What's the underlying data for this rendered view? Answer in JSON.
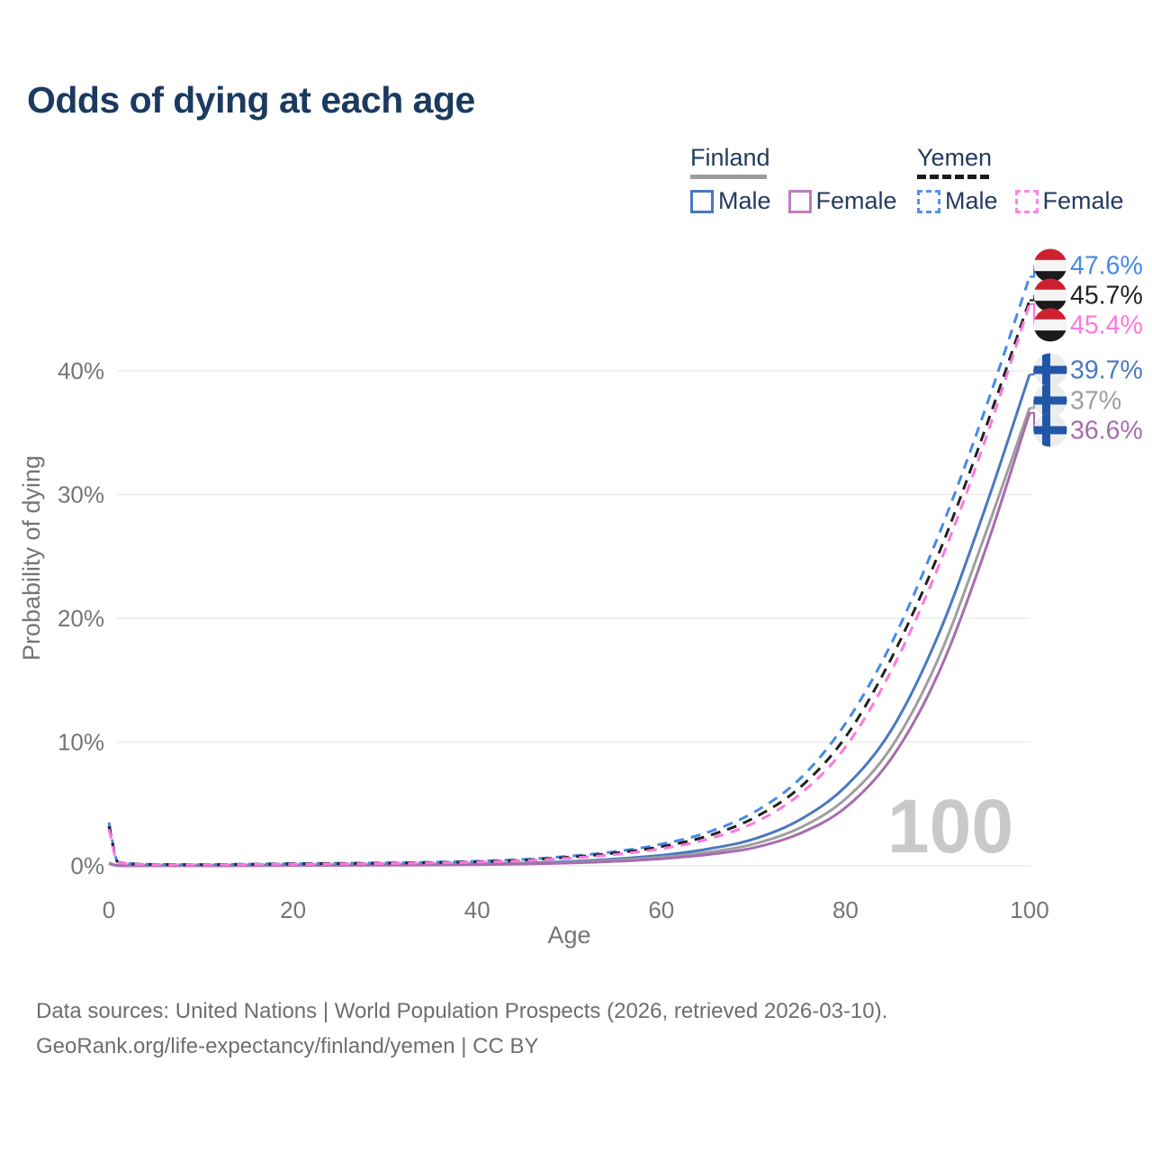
{
  "title": "Odds of dying at each age",
  "legend": {
    "groups": [
      {
        "title": "Finland",
        "line_style": "solid",
        "line_color": "#9c9c9c",
        "items": [
          {
            "label": "Male",
            "color": "#4a78c0"
          },
          {
            "label": "Female",
            "color": "#bd7ec0"
          }
        ]
      },
      {
        "title": "Yemen",
        "line_style": "dashed",
        "line_color": "#1a1a1a",
        "items": [
          {
            "label": "Male",
            "color": "#5591e8"
          },
          {
            "label": "Female",
            "color": "#ff85e3"
          }
        ]
      }
    ]
  },
  "watermark": "100",
  "chart_data": {
    "type": "line",
    "title": "Odds of dying at each age",
    "xlabel": "Age",
    "ylabel": "Probability of dying",
    "x_ticks": [
      0,
      20,
      40,
      60,
      80,
      100
    ],
    "y_ticks": [
      0,
      10,
      20,
      30,
      40
    ],
    "y_tick_suffix": "%",
    "xlim": [
      0,
      100
    ],
    "ylim": [
      0,
      48
    ],
    "grid": true,
    "legend_position": "top-right",
    "hovered_age": "100",
    "x": [
      0,
      1,
      5,
      10,
      15,
      20,
      25,
      30,
      35,
      40,
      45,
      50,
      55,
      60,
      65,
      70,
      75,
      80,
      85,
      90,
      95,
      100
    ],
    "series": [
      {
        "name": "Finland Male",
        "country": "Finland",
        "sex": "Male",
        "color": "#4a78c0",
        "dashed": false,
        "end_label": "39.7%",
        "end_value": 39.7,
        "values": [
          0.22,
          0.02,
          0.01,
          0.01,
          0.03,
          0.06,
          0.07,
          0.09,
          0.11,
          0.15,
          0.22,
          0.35,
          0.55,
          0.85,
          1.35,
          2.15,
          3.7,
          6.4,
          11.0,
          18.5,
          28.5,
          39.7
        ]
      },
      {
        "name": "Finland Both sexes",
        "country": "Finland",
        "sex": "Both",
        "color": "#9e9e9e",
        "dashed": false,
        "end_label": "37%",
        "end_value": 37,
        "values": [
          0.2,
          0.017,
          0.009,
          0.009,
          0.022,
          0.043,
          0.052,
          0.068,
          0.086,
          0.12,
          0.18,
          0.28,
          0.45,
          0.7,
          1.08,
          1.75,
          3.05,
          5.4,
          9.6,
          16.6,
          26.4,
          37.0
        ]
      },
      {
        "name": "Finland Female",
        "country": "Finland",
        "sex": "Female",
        "color": "#a76cb0",
        "dashed": false,
        "end_label": "36.6%",
        "end_value": 36.6,
        "values": [
          0.17,
          0.015,
          0.008,
          0.008,
          0.016,
          0.026,
          0.036,
          0.05,
          0.068,
          0.095,
          0.145,
          0.225,
          0.36,
          0.57,
          0.9,
          1.45,
          2.6,
          4.7,
          8.7,
          15.4,
          25.1,
          36.6
        ]
      },
      {
        "name": "Yemen Male",
        "country": "Yemen",
        "sex": "Male",
        "color": "#458ae8",
        "dashed": true,
        "end_label": "47.6%",
        "end_value": 47.6,
        "values": [
          3.5,
          0.3,
          0.12,
          0.1,
          0.14,
          0.18,
          0.21,
          0.24,
          0.29,
          0.37,
          0.52,
          0.78,
          1.15,
          1.75,
          2.7,
          4.3,
          7.0,
          11.5,
          18.0,
          26.5,
          36.5,
          47.6
        ]
      },
      {
        "name": "Yemen Both sexes",
        "country": "Yemen",
        "sex": "Both",
        "color": "#222222",
        "dashed": true,
        "end_label": "45.7%",
        "end_value": 45.7,
        "values": [
          3.2,
          0.28,
          0.11,
          0.09,
          0.12,
          0.16,
          0.18,
          0.21,
          0.26,
          0.33,
          0.46,
          0.7,
          1.03,
          1.55,
          2.4,
          3.85,
          6.3,
          10.4,
          16.8,
          25.0,
          34.9,
          45.7
        ]
      },
      {
        "name": "Yemen Female",
        "country": "Yemen",
        "sex": "Female",
        "color": "#ff77dd",
        "dashed": true,
        "end_label": "45.4%",
        "end_value": 45.4,
        "values": [
          2.95,
          0.26,
          0.1,
          0.08,
          0.1,
          0.13,
          0.15,
          0.18,
          0.23,
          0.3,
          0.41,
          0.62,
          0.92,
          1.38,
          2.15,
          3.45,
          5.75,
          9.6,
          15.8,
          24.0,
          34.0,
          45.4
        ]
      }
    ]
  },
  "flags": {
    "yemen": {
      "red": "#cf2030",
      "white": "#f4f4f4",
      "black": "#1a1a1a"
    },
    "finland": {
      "bg": "#ececec",
      "cross": "#2157a7"
    }
  },
  "colors": {
    "grid": "#ebebeb",
    "axis_text": "#757575",
    "title_text": "#1b3a5f",
    "legend_text": "#243a5e",
    "watermark": "#c9c9c9",
    "footer_text": "#6e6e6e"
  },
  "footer": {
    "line1": "Data sources: United Nations | World Population Prospects (2026, retrieved 2026-03-10).",
    "line2": "GeoRank.org/life-expectancy/finland/yemen | CC BY"
  }
}
